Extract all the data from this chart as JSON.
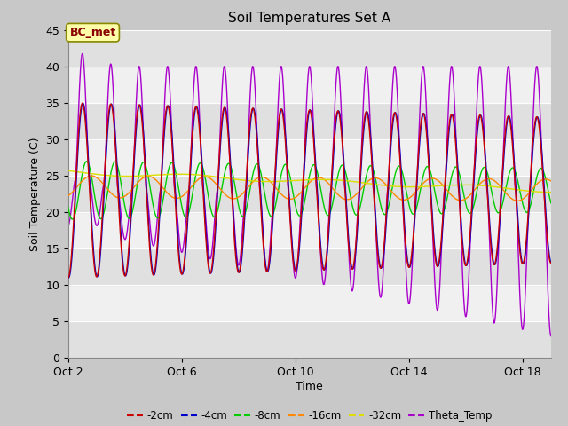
{
  "title": "Soil Temperatures Set A",
  "xlabel": "Time",
  "ylabel": "Soil Temperature (C)",
  "ylim": [
    0,
    45
  ],
  "yticks": [
    0,
    5,
    10,
    15,
    20,
    25,
    30,
    35,
    40,
    45
  ],
  "colors": {
    "-2cm": "#cc0000",
    "-4cm": "#0000cc",
    "-8cm": "#00cc00",
    "-16cm": "#ff8800",
    "-32cm": "#dddd00",
    "Theta_Temp": "#aa00cc"
  },
  "annotation_text": "BC_met",
  "annotation_color": "#880000",
  "annotation_bg": "#ffffaa",
  "annotation_border": "#888800",
  "start_day": 2,
  "end_day": 19,
  "n_points": 2000
}
